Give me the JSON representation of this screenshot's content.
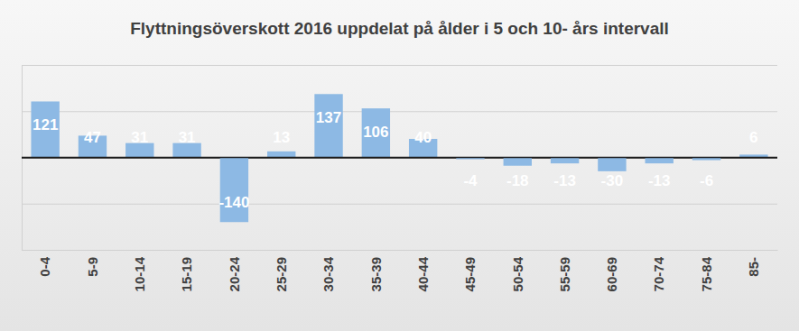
{
  "chart_data": {
    "type": "bar",
    "title": "Flyttningsöverskott 2016 uppdelat på ålder i 5 och 10- års intervall",
    "categories": [
      "0-4",
      "5-9",
      "10-14",
      "15-19",
      "20-24",
      "25-29",
      "30-34",
      "35-39",
      "40-44",
      "45-49",
      "50-54",
      "55-59",
      "60-69",
      "70-74",
      "75-84",
      "85-"
    ],
    "values": [
      121,
      47,
      31,
      31,
      -140,
      13,
      137,
      106,
      40,
      -4,
      -18,
      -13,
      -30,
      -13,
      -6,
      6
    ],
    "color": "#8db9e4",
    "ylim": [
      -200,
      200
    ],
    "yticks": [
      -200,
      -100,
      0,
      100,
      200
    ],
    "grid": true,
    "data_labels": true,
    "tick_labels": "x"
  }
}
